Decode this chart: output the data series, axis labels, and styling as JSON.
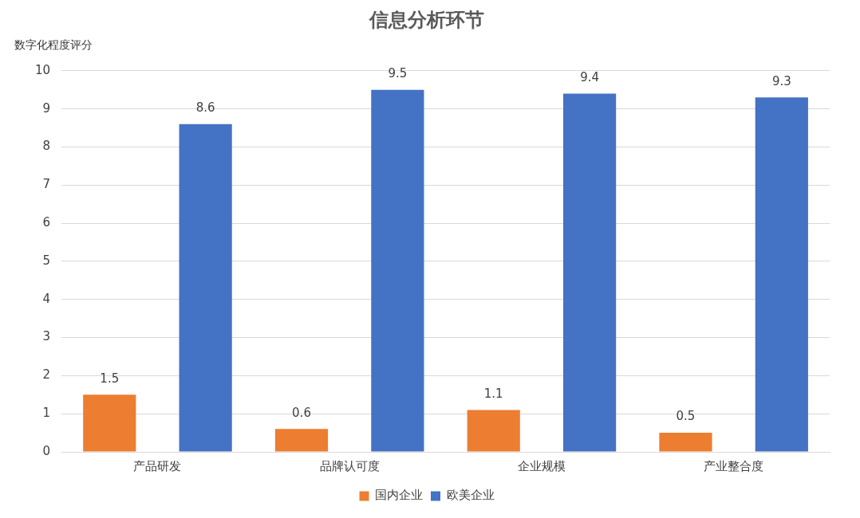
{
  "chart_data": {
    "type": "bar",
    "title": "信息分析环节",
    "ylabel": "数字化程度评分",
    "categories": [
      "产品研发",
      "品牌认可度",
      "企业规模",
      "产业整合度"
    ],
    "series": [
      {
        "name": "国内企业",
        "color": "#ed7d31",
        "values": [
          1.5,
          0.6,
          1.1,
          0.5
        ]
      },
      {
        "name": "欧美企业",
        "color": "#4472c4",
        "values": [
          8.6,
          9.5,
          9.4,
          9.3
        ]
      }
    ],
    "ylim": [
      0,
      10
    ],
    "yticks": [
      0,
      1,
      2,
      3,
      4,
      5,
      6,
      7,
      8,
      9,
      10
    ],
    "grid": "y",
    "legend": "bottom",
    "data_labels": true
  }
}
